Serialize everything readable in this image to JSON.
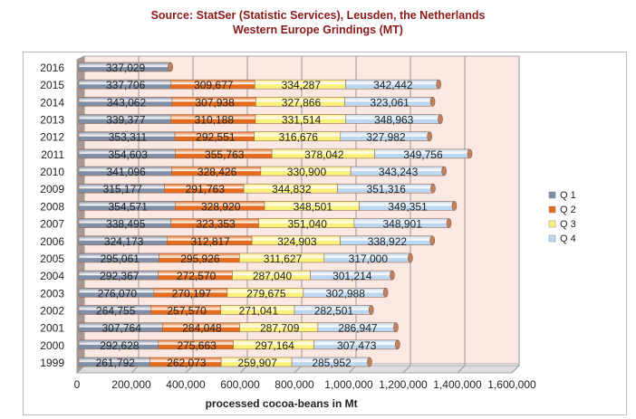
{
  "chart_data": {
    "type": "bar",
    "orientation": "horizontal",
    "stacked": true,
    "title": "Source: StatSer (Statistic Services), Leusden, the Netherlands",
    "subtitle": "Western Europe Grindings (MT)",
    "xlabel": "processed cocoa-beans in Mt",
    "ylabel": "",
    "xlim": [
      0,
      1600000
    ],
    "x_ticks": [
      "0",
      "200,000",
      "400,000",
      "600,000",
      "800,000",
      "1,000,000",
      "1,200,000",
      "1,400,000",
      "1,600,000"
    ],
    "grid": true,
    "legend_position": "right",
    "categories": [
      "1999",
      "2000",
      "2001",
      "2002",
      "2003",
      "2004",
      "2005",
      "2006",
      "2007",
      "2008",
      "2009",
      "2010",
      "2011",
      "2012",
      "2013",
      "2014",
      "2015",
      "2016"
    ],
    "series": [
      {
        "name": "Q 1",
        "color": "#7f8fa8",
        "values": [
          261792,
          292628,
          307764,
          264755,
          276070,
          292367,
          295061,
          324173,
          338495,
          354571,
          315177,
          341096,
          354603,
          353311,
          339377,
          343062,
          337706,
          337029
        ]
      },
      {
        "name": "Q 2",
        "color": "#e46c1c",
        "values": [
          262073,
          275663,
          284048,
          257570,
          270197,
          272570,
          295926,
          312817,
          323353,
          328920,
          291763,
          328426,
          355763,
          292551,
          310188,
          307938,
          309677,
          null
        ]
      },
      {
        "name": "Q 3",
        "color": "#fbf27c",
        "values": [
          259907,
          297164,
          287709,
          271041,
          279675,
          287040,
          311627,
          324903,
          351040,
          348501,
          344832,
          330900,
          378042,
          316676,
          331514,
          327866,
          334287,
          null
        ]
      },
      {
        "name": "Q 4",
        "color": "#bcd8f0",
        "values": [
          285952,
          307473,
          286947,
          282501,
          302988,
          301214,
          317000,
          338922,
          348901,
          349351,
          351316,
          343243,
          349756,
          327982,
          348963,
          323061,
          342442,
          null
        ]
      }
    ]
  }
}
